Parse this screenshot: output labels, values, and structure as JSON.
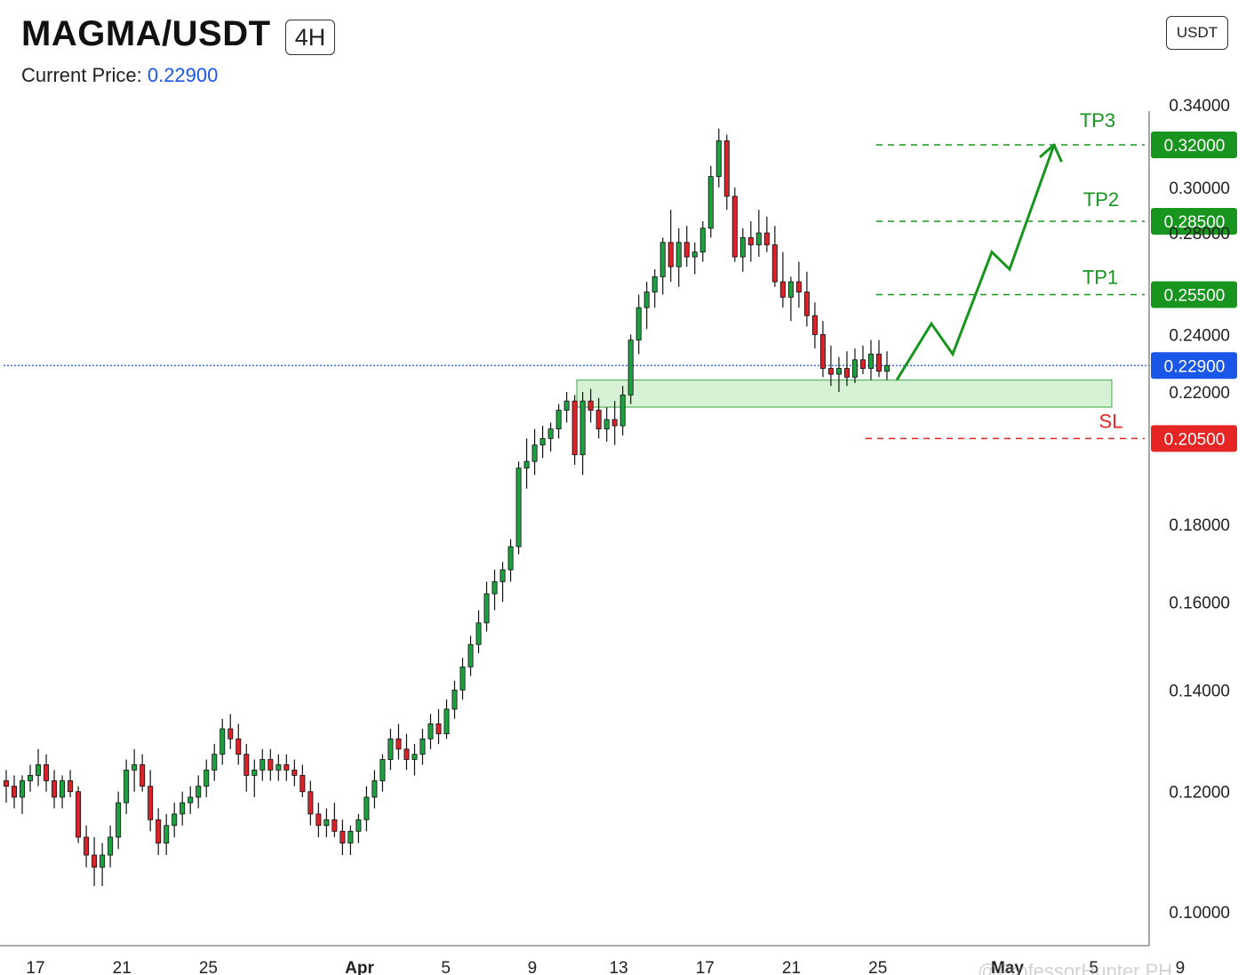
{
  "header": {
    "pair": "MAGMA/USDT",
    "timeframe": "4H",
    "current_price_label": "Current Price:",
    "current_price_value": "0.22900",
    "currency_button": "USDT"
  },
  "watermark": "@ProfessorHunter PH",
  "colors": {
    "up": "#1fa040",
    "down": "#d8232a",
    "target": "#18951f",
    "stop": "#e52424",
    "current": "#1a56e8",
    "zone_fill": "#cfeecb",
    "zone_stroke": "#3ca84a"
  },
  "chart_data": {
    "type": "candlestick",
    "title": "MAGMA/USDT",
    "interval": "4H",
    "y_axis": {
      "ticks": [
        "0.34000",
        "0.30000",
        "0.28000",
        "0.24000",
        "0.22000",
        "0.18000",
        "0.16000",
        "0.14000",
        "0.12000",
        "0.10000"
      ],
      "tick_values": [
        0.34,
        0.3,
        0.28,
        0.24,
        0.22,
        0.18,
        0.16,
        0.14,
        0.12,
        0.1
      ],
      "scale": "log"
    },
    "x_axis": {
      "ticks": [
        "17",
        "21",
        "25",
        "Apr",
        "5",
        "9",
        "13",
        "17",
        "21",
        "25",
        "May",
        "5",
        "9"
      ],
      "tick_dates": [
        "Mar 17",
        "Mar 21",
        "Mar 25",
        "Apr 1",
        "Apr 5",
        "Apr 9",
        "Apr 13",
        "Apr 17",
        "Apr 21",
        "Apr 25",
        "May 1",
        "May 5",
        "May 9"
      ]
    },
    "levels": [
      {
        "label": "TP3",
        "value": 0.32,
        "value_label": "0.32000",
        "kind": "target"
      },
      {
        "label": "TP2",
        "value": 0.285,
        "value_label": "0.28500",
        "kind": "target"
      },
      {
        "label": "TP1",
        "value": 0.255,
        "value_label": "0.25500",
        "kind": "target"
      },
      {
        "label": "SL",
        "value": 0.205,
        "value_label": "0.20500",
        "kind": "stop"
      }
    ],
    "current_price": {
      "value": 0.229,
      "value_label": "0.22900"
    },
    "support_zone": {
      "low": 0.215,
      "high": 0.224
    },
    "projection_path": [
      0.224,
      0.244,
      0.233,
      0.272,
      0.265,
      0.32
    ],
    "candles": [
      [
        0.122,
        0.124,
        0.118,
        0.121
      ],
      [
        0.121,
        0.123,
        0.117,
        0.119
      ],
      [
        0.119,
        0.123,
        0.116,
        0.122
      ],
      [
        0.122,
        0.125,
        0.12,
        0.123
      ],
      [
        0.123,
        0.128,
        0.121,
        0.125
      ],
      [
        0.125,
        0.127,
        0.12,
        0.122
      ],
      [
        0.122,
        0.124,
        0.117,
        0.119
      ],
      [
        0.119,
        0.123,
        0.117,
        0.122
      ],
      [
        0.122,
        0.124,
        0.119,
        0.12
      ],
      [
        0.12,
        0.121,
        0.111,
        0.112
      ],
      [
        0.112,
        0.114,
        0.107,
        0.109
      ],
      [
        0.109,
        0.112,
        0.104,
        0.107
      ],
      [
        0.107,
        0.111,
        0.104,
        0.109
      ],
      [
        0.109,
        0.114,
        0.107,
        0.112
      ],
      [
        0.112,
        0.12,
        0.11,
        0.118
      ],
      [
        0.118,
        0.126,
        0.116,
        0.124
      ],
      [
        0.124,
        0.128,
        0.12,
        0.125
      ],
      [
        0.125,
        0.127,
        0.12,
        0.121
      ],
      [
        0.121,
        0.124,
        0.113,
        0.115
      ],
      [
        0.115,
        0.117,
        0.109,
        0.111
      ],
      [
        0.111,
        0.116,
        0.109,
        0.114
      ],
      [
        0.114,
        0.118,
        0.112,
        0.116
      ],
      [
        0.116,
        0.12,
        0.114,
        0.118
      ],
      [
        0.118,
        0.121,
        0.116,
        0.119
      ],
      [
        0.119,
        0.123,
        0.117,
        0.121
      ],
      [
        0.121,
        0.126,
        0.119,
        0.124
      ],
      [
        0.124,
        0.129,
        0.122,
        0.127
      ],
      [
        0.127,
        0.134,
        0.125,
        0.132
      ],
      [
        0.132,
        0.135,
        0.128,
        0.13
      ],
      [
        0.13,
        0.133,
        0.125,
        0.127
      ],
      [
        0.127,
        0.129,
        0.12,
        0.123
      ],
      [
        0.123,
        0.126,
        0.119,
        0.124
      ],
      [
        0.124,
        0.128,
        0.122,
        0.126
      ],
      [
        0.126,
        0.128,
        0.122,
        0.124
      ],
      [
        0.124,
        0.127,
        0.122,
        0.125
      ],
      [
        0.125,
        0.127,
        0.122,
        0.124
      ],
      [
        0.124,
        0.126,
        0.121,
        0.123
      ],
      [
        0.123,
        0.125,
        0.119,
        0.12
      ],
      [
        0.12,
        0.122,
        0.114,
        0.116
      ],
      [
        0.116,
        0.118,
        0.112,
        0.114
      ],
      [
        0.114,
        0.117,
        0.112,
        0.115
      ],
      [
        0.115,
        0.118,
        0.112,
        0.113
      ],
      [
        0.113,
        0.115,
        0.109,
        0.111
      ],
      [
        0.111,
        0.114,
        0.109,
        0.113
      ],
      [
        0.113,
        0.116,
        0.111,
        0.115
      ],
      [
        0.115,
        0.121,
        0.113,
        0.119
      ],
      [
        0.119,
        0.124,
        0.117,
        0.122
      ],
      [
        0.122,
        0.127,
        0.12,
        0.126
      ],
      [
        0.126,
        0.132,
        0.124,
        0.13
      ],
      [
        0.13,
        0.133,
        0.126,
        0.128
      ],
      [
        0.128,
        0.131,
        0.124,
        0.126
      ],
      [
        0.126,
        0.129,
        0.123,
        0.127
      ],
      [
        0.127,
        0.132,
        0.125,
        0.13
      ],
      [
        0.13,
        0.135,
        0.128,
        0.133
      ],
      [
        0.133,
        0.136,
        0.129,
        0.131
      ],
      [
        0.131,
        0.138,
        0.13,
        0.136
      ],
      [
        0.136,
        0.142,
        0.134,
        0.14
      ],
      [
        0.14,
        0.147,
        0.138,
        0.145
      ],
      [
        0.145,
        0.152,
        0.143,
        0.15
      ],
      [
        0.15,
        0.158,
        0.148,
        0.155
      ],
      [
        0.155,
        0.165,
        0.153,
        0.162
      ],
      [
        0.162,
        0.168,
        0.158,
        0.165
      ],
      [
        0.165,
        0.17,
        0.16,
        0.168
      ],
      [
        0.168,
        0.176,
        0.165,
        0.174
      ],
      [
        0.174,
        0.198,
        0.172,
        0.196
      ],
      [
        0.196,
        0.205,
        0.19,
        0.198
      ],
      [
        0.198,
        0.208,
        0.194,
        0.203
      ],
      [
        0.203,
        0.209,
        0.199,
        0.205
      ],
      [
        0.205,
        0.21,
        0.201,
        0.208
      ],
      [
        0.208,
        0.216,
        0.205,
        0.214
      ],
      [
        0.214,
        0.22,
        0.21,
        0.217
      ],
      [
        0.217,
        0.219,
        0.197,
        0.2
      ],
      [
        0.2,
        0.22,
        0.194,
        0.217
      ],
      [
        0.217,
        0.221,
        0.21,
        0.214
      ],
      [
        0.214,
        0.218,
        0.205,
        0.208
      ],
      [
        0.208,
        0.215,
        0.204,
        0.211
      ],
      [
        0.211,
        0.217,
        0.203,
        0.209
      ],
      [
        0.209,
        0.222,
        0.206,
        0.219
      ],
      [
        0.219,
        0.24,
        0.216,
        0.238
      ],
      [
        0.238,
        0.255,
        0.233,
        0.25
      ],
      [
        0.25,
        0.26,
        0.242,
        0.256
      ],
      [
        0.256,
        0.265,
        0.25,
        0.262
      ],
      [
        0.262,
        0.278,
        0.255,
        0.276
      ],
      [
        0.276,
        0.29,
        0.26,
        0.266
      ],
      [
        0.266,
        0.282,
        0.258,
        0.276
      ],
      [
        0.276,
        0.283,
        0.266,
        0.27
      ],
      [
        0.27,
        0.276,
        0.263,
        0.272
      ],
      [
        0.272,
        0.285,
        0.268,
        0.282
      ],
      [
        0.282,
        0.31,
        0.278,
        0.305
      ],
      [
        0.305,
        0.328,
        0.3,
        0.322
      ],
      [
        0.322,
        0.325,
        0.29,
        0.296
      ],
      [
        0.296,
        0.3,
        0.268,
        0.27
      ],
      [
        0.27,
        0.282,
        0.264,
        0.278
      ],
      [
        0.278,
        0.285,
        0.268,
        0.275
      ],
      [
        0.275,
        0.29,
        0.27,
        0.28
      ],
      [
        0.28,
        0.287,
        0.272,
        0.275
      ],
      [
        0.275,
        0.283,
        0.258,
        0.26
      ],
      [
        0.26,
        0.272,
        0.25,
        0.254
      ],
      [
        0.254,
        0.262,
        0.245,
        0.26
      ],
      [
        0.26,
        0.268,
        0.25,
        0.256
      ],
      [
        0.256,
        0.264,
        0.243,
        0.247
      ],
      [
        0.247,
        0.252,
        0.235,
        0.24
      ],
      [
        0.24,
        0.245,
        0.225,
        0.228
      ],
      [
        0.228,
        0.236,
        0.222,
        0.226
      ],
      [
        0.226,
        0.232,
        0.22,
        0.228
      ],
      [
        0.228,
        0.234,
        0.222,
        0.225
      ],
      [
        0.225,
        0.235,
        0.223,
        0.231
      ],
      [
        0.231,
        0.236,
        0.226,
        0.228
      ],
      [
        0.228,
        0.238,
        0.224,
        0.233
      ],
      [
        0.233,
        0.238,
        0.225,
        0.227
      ],
      [
        0.227,
        0.234,
        0.224,
        0.229
      ]
    ]
  }
}
